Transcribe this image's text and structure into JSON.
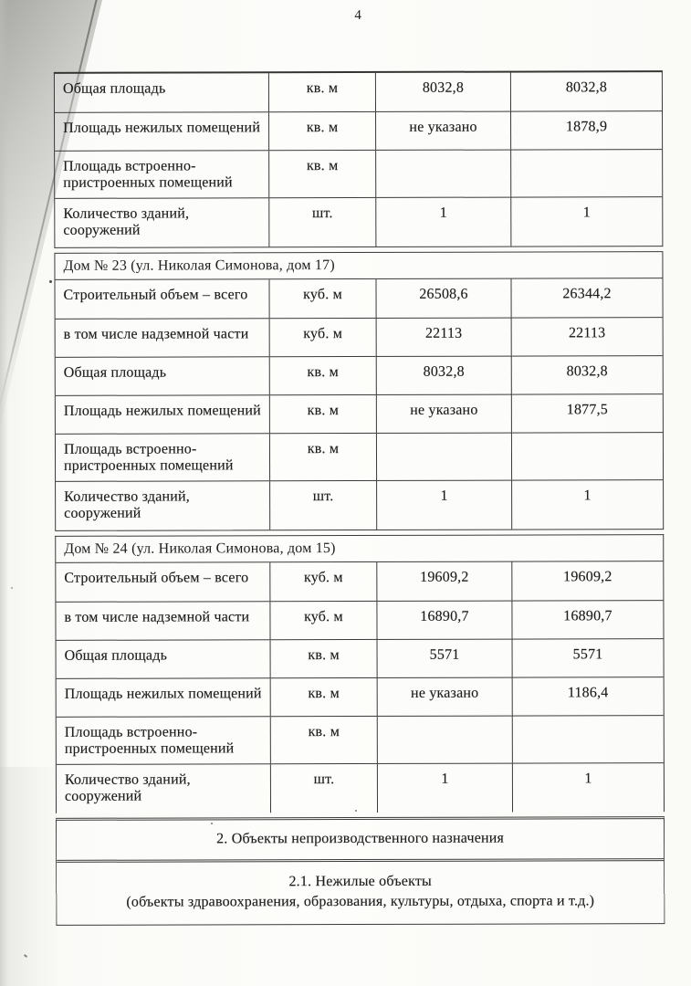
{
  "page_number": "4",
  "table": {
    "blocks": [
      {
        "header": "",
        "rows": [
          {
            "label": "Общая площадь",
            "unit": "кв. м",
            "value_1": "8032,8",
            "value_2": "8032,8"
          },
          {
            "label": "Площадь нежилых помещений",
            "unit": "кв. м",
            "value_1": "не указано",
            "value_2": "1878,9"
          },
          {
            "label": "Площадь встроенно-пристроенных помещений",
            "unit": "кв. м",
            "value_1": "",
            "value_2": ""
          },
          {
            "label": "Количество зданий, сооружений",
            "unit": "шт.",
            "value_1": "1",
            "value_2": "1"
          }
        ]
      },
      {
        "header": "Дом № 23 (ул. Николая Симонова, дом 17)",
        "rows": [
          {
            "label": "Строительный объем – всего",
            "unit": "куб. м",
            "value_1": "26508,6",
            "value_2": "26344,2"
          },
          {
            "label": "в том числе надземной части",
            "unit": "куб. м",
            "value_1": "22113",
            "value_2": "22113"
          },
          {
            "label": "Общая площадь",
            "unit": "кв. м",
            "value_1": "8032,8",
            "value_2": "8032,8"
          },
          {
            "label": "Площадь нежилых помещений",
            "unit": "кв. м",
            "value_1": "не указано",
            "value_2": "1877,5"
          },
          {
            "label": "Площадь встроенно-пристроенных помещений",
            "unit": "кв. м",
            "value_1": "",
            "value_2": ""
          },
          {
            "label": "Количество зданий, сооружений",
            "unit": "шт.",
            "value_1": "1",
            "value_2": "1"
          }
        ]
      },
      {
        "header": "Дом № 24 (ул. Николая Симонова, дом 15)",
        "rows": [
          {
            "label": "Строительный объем – всего",
            "unit": "куб. м",
            "value_1": "19609,2",
            "value_2": "19609,2"
          },
          {
            "label": "в том числе надземной части",
            "unit": "куб. м",
            "value_1": "16890,7",
            "value_2": "16890,7"
          },
          {
            "label": "Общая площадь",
            "unit": "кв. м",
            "value_1": "5571",
            "value_2": "5571"
          },
          {
            "label": "Площадь нежилых помещений",
            "unit": "кв. м",
            "value_1": "не указано",
            "value_2": "1186,4"
          },
          {
            "label": "Площадь встроенно-пристроенных помещений",
            "unit": "кв. м",
            "value_1": "",
            "value_2": ""
          },
          {
            "label": "Количество зданий, сооружений",
            "unit": "шт.",
            "value_1": "1",
            "value_2": "1"
          }
        ]
      }
    ],
    "section_rows": [
      {
        "lines": [
          "2. Объекты непроизводственного назначения"
        ]
      },
      {
        "lines": [
          "2.1. Нежилые объекты",
          "(объекты здравоохранения, образования, культуры, отдыха, спорта и т.д.)"
        ]
      }
    ]
  },
  "colors": {
    "paper": "#fbfbf8",
    "ink": "#1d1d1d",
    "table_border": "#3a3a3a",
    "scan_shadow": "#a9a9a6"
  }
}
